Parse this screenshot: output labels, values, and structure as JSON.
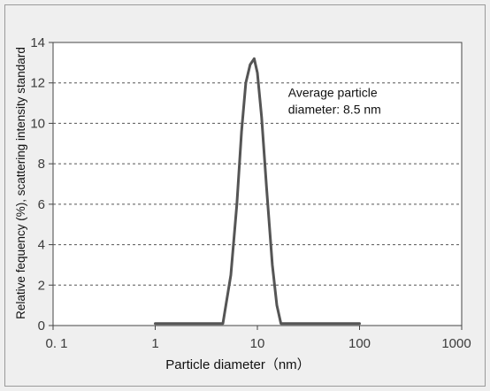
{
  "chart_data": {
    "type": "line",
    "title": "",
    "xlabel": "Particle diameter（nm）",
    "ylabel": "Relative fequency (%), scattering intensity standard",
    "x_scale": "log",
    "xlim": [
      0.1,
      1000
    ],
    "ylim": [
      0,
      14
    ],
    "x_ticks": [
      0.1,
      1,
      10,
      100,
      1000
    ],
    "x_tick_labels": [
      "0. 1",
      "1",
      "10",
      "100",
      "1000"
    ],
    "y_ticks": [
      0,
      2,
      4,
      6,
      8,
      10,
      12,
      14
    ],
    "y_tick_labels": [
      "0",
      "2",
      "4",
      "6",
      "8",
      "10",
      "12",
      "14"
    ],
    "grid": "horizontal dashed",
    "colors": {
      "background": "#efefef",
      "plot_area": "#ffffff",
      "line": "#555555",
      "grid": "#555555"
    },
    "series": [
      {
        "x": [
          1,
          4.6,
          5.5,
          6.3,
          7.0,
          7.7,
          8.5,
          9.3,
          10.0,
          11.0,
          12.3,
          14.0,
          15.5,
          17.0,
          100
        ],
        "y": [
          0.1,
          0.1,
          2.5,
          6.0,
          9.6,
          12.0,
          12.9,
          13.2,
          12.5,
          10.3,
          6.8,
          3.0,
          1.0,
          0.1,
          0.1
        ]
      }
    ],
    "annotations": [
      {
        "lines": [
          "Average particle",
          "diameter: 8.5 nm"
        ],
        "x": 20,
        "y": 11.3
      }
    ]
  }
}
